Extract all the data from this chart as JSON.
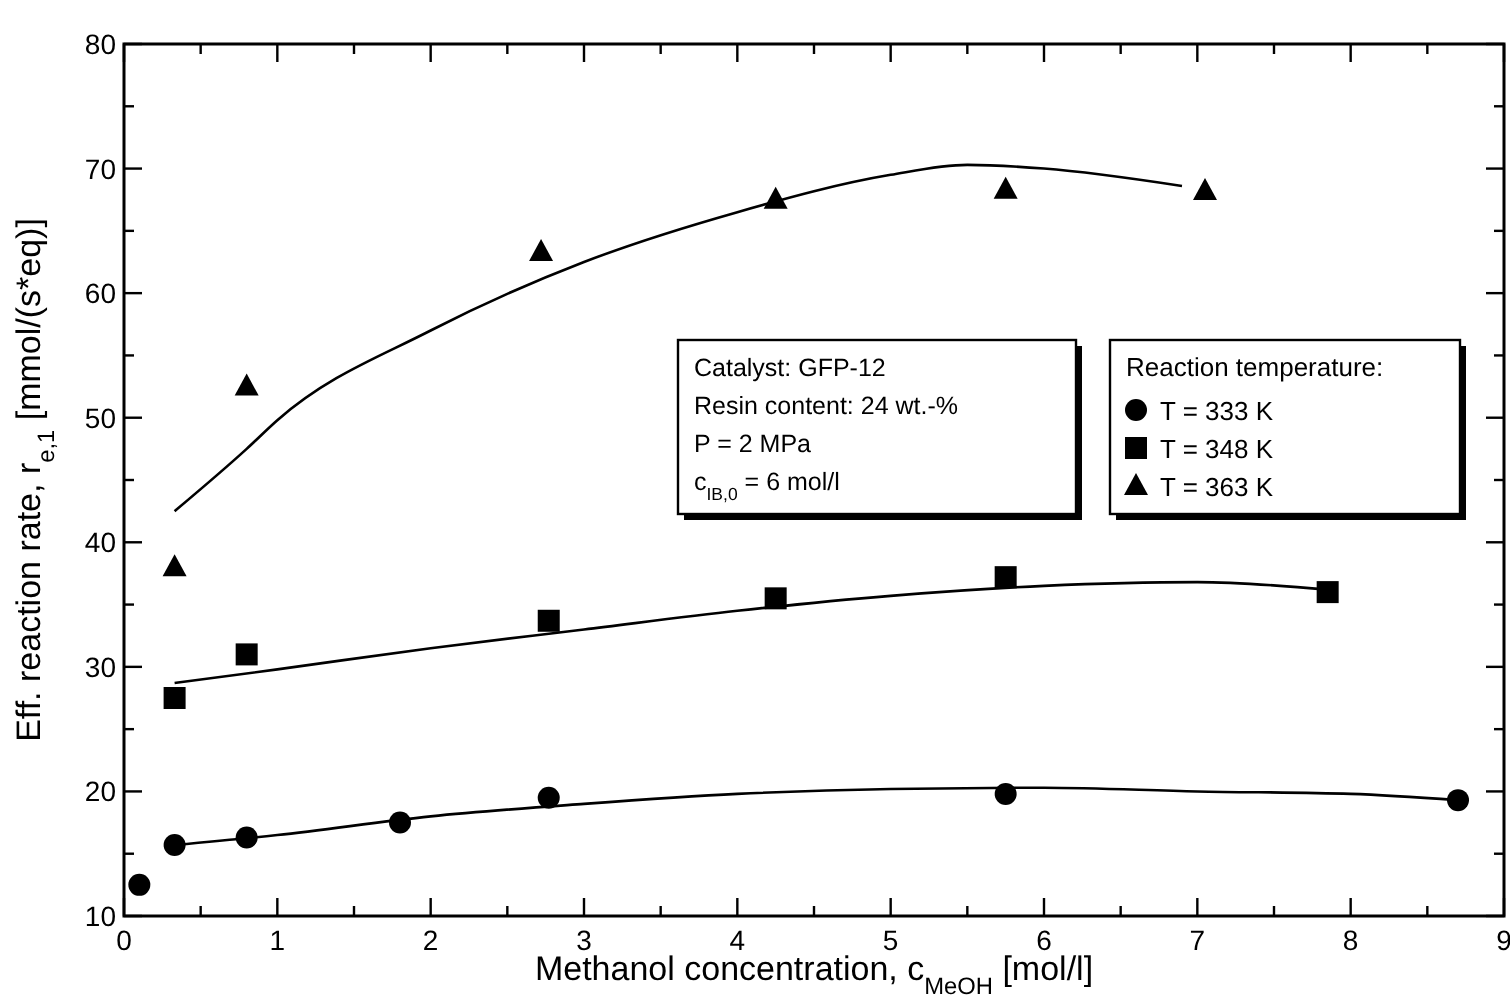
{
  "chart_data": {
    "type": "scatter",
    "xlabel": "Methanol concentration, c$_{MeOH}$ [mol/l]",
    "ylabel": "Eff. reaction rate, r$_{e,1}$ [mmol/(s*eq)]",
    "legend_title": "Reaction temperature:",
    "legend": "right",
    "grid": false,
    "xlim": [
      0,
      9
    ],
    "ylim": [
      10,
      80
    ],
    "xticks": [
      0,
      {
        "value": 0.5,
        "label": null
      },
      1,
      {
        "value": 1.5,
        "label": null
      },
      2,
      {
        "value": 2.5,
        "label": null
      },
      3,
      {
        "value": 3.5,
        "label": null
      },
      4,
      {
        "value": 4.5,
        "label": null
      },
      5,
      {
        "value": 5.5,
        "label": null
      },
      6,
      {
        "value": 6.5,
        "label": null
      },
      7,
      {
        "value": 7.5,
        "label": null
      },
      8,
      {
        "value": 8.5,
        "label": null
      },
      9
    ],
    "yticks": [
      10,
      {
        "value": 15,
        "label": null
      },
      20,
      {
        "value": 25,
        "label": null
      },
      30,
      {
        "value": 35,
        "label": null
      },
      40,
      {
        "value": 45,
        "label": null
      },
      50,
      {
        "value": 55,
        "label": null
      },
      60,
      {
        "value": 65,
        "label": null
      },
      70,
      {
        "value": 75,
        "label": null
      },
      80
    ],
    "annotations": [
      "Catalyst: GFP-12",
      "Resin content: 24 wt.-%",
      "P = 2 MPa",
      "c$_{IB,0}$ = 6 mol/l"
    ],
    "series": [
      {
        "name": "T = 333 K",
        "marker": "circle",
        "color": "#000000",
        "x": [
          0.1,
          0.33,
          0.8,
          1.8,
          2.77,
          5.75,
          8.7
        ],
        "values": [
          12.5,
          15.7,
          16.3,
          17.5,
          19.5,
          19.8,
          19.3
        ]
      },
      {
        "name": "T = 348 K",
        "marker": "square",
        "color": "#000000",
        "x": [
          0.33,
          0.8,
          2.77,
          4.25,
          5.75,
          7.85
        ],
        "values": [
          27.5,
          31,
          33.7,
          35.5,
          37.2,
          36
        ]
      },
      {
        "name": "T = 363 K",
        "marker": "triangle",
        "color": "#000000",
        "x": [
          0.33,
          0.8,
          2.72,
          4.25,
          5.75,
          7.05
        ],
        "values": [
          38,
          52.5,
          63.3,
          67.5,
          68.3,
          68.2
        ]
      },
      {
        "type": "line",
        "marker": "none",
        "color": "#000000",
        "x": [
          0.33,
          1,
          2,
          3,
          4,
          5,
          6,
          7,
          8,
          8.7
        ],
        "values": [
          15.7,
          16.5,
          18,
          19,
          19.8,
          20.2,
          20.3,
          20,
          19.8,
          19.3
        ]
      },
      {
        "type": "line",
        "marker": "none",
        "color": "#000000",
        "x": [
          0.33,
          1,
          2,
          3,
          4,
          5,
          6,
          7,
          7.85
        ],
        "values": [
          28.7,
          29.8,
          31.5,
          33,
          34.5,
          35.7,
          36.5,
          36.8,
          36.2
        ]
      },
      {
        "type": "line",
        "marker": "none",
        "color": "#000000",
        "x": [
          0.33,
          0.8,
          1,
          2,
          3,
          4,
          5,
          5.5,
          6,
          6.9
        ],
        "values": [
          42.5,
          47.5,
          49.8,
          57,
          62.5,
          66.5,
          69.5,
          70.3,
          70,
          68.6
        ]
      }
    ]
  }
}
